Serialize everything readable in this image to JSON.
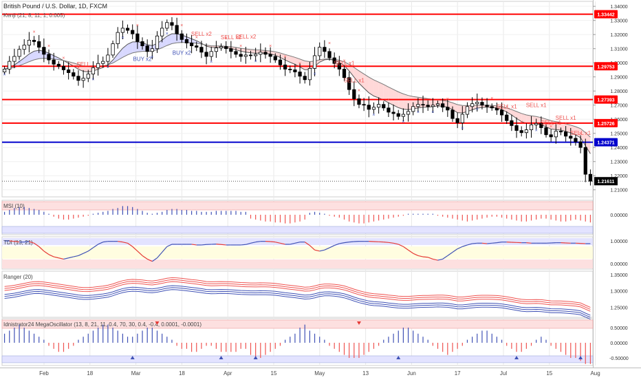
{
  "header": {
    "symbol_title": "British Pound / U.S. Dollar, 1D, FXCM",
    "kenji_label": "Kenji (21, 8, 11, 1, 0.005)"
  },
  "colors": {
    "up": "#ffffff",
    "down": "#000000",
    "resistance": "#ff0000",
    "support": "#0000cc",
    "sell_text": "#ef5350",
    "buy_text": "#3f51b5",
    "cloud_bull": "#d8d8ff",
    "cloud_bear": "#ffd8d8",
    "cloud_neutral": "#dfeadf",
    "grid": "#e8e8e8"
  },
  "chart_data": [
    {
      "type": "candlestick",
      "title": "British Pound / U.S. Dollar, 1D, FXCM",
      "indicator_label": "Kenji (21, 8, 11, 1, 0.005)",
      "ylim": [
        1.205,
        1.3435
      ],
      "y_ticks": [
        "1.34000",
        "1.33000",
        "1.32000",
        "1.31000",
        "1.30000",
        "1.29000",
        "1.28000",
        "1.27000",
        "1.26000",
        "1.25000",
        "1.24000",
        "1.23000",
        "1.22000",
        "1.21000"
      ],
      "x_ticks": [
        "Feb",
        "18",
        "Mar",
        "18",
        "Apr",
        "15",
        "May",
        "13",
        "Jun",
        "17",
        "Jul",
        "15",
        "Aug"
      ],
      "horizontal_levels": [
        {
          "value": 1.33442,
          "label": "1.33442",
          "color": "red"
        },
        {
          "value": 1.29753,
          "label": "1.29753",
          "color": "red"
        },
        {
          "value": 1.27393,
          "label": "1.27393",
          "color": "red"
        },
        {
          "value": 1.25726,
          "label": "1.25726",
          "color": "red"
        },
        {
          "value": 1.24371,
          "label": "1.24371",
          "color": "blue"
        }
      ],
      "last_price": {
        "value": 1.21611,
        "label": "1.21611"
      },
      "close_series_approx": [
        1.2955,
        1.301,
        1.3045,
        1.3095,
        1.3125,
        1.316,
        1.315,
        1.311,
        1.306,
        1.302,
        1.299,
        1.2975,
        1.295,
        1.293,
        1.2905,
        1.2875,
        1.289,
        1.292,
        1.2965,
        1.2995,
        1.301,
        1.3055,
        1.3135,
        1.3215,
        1.3245,
        1.323,
        1.3205,
        1.315,
        1.312,
        1.308,
        1.31,
        1.319,
        1.3245,
        1.3285,
        1.3265,
        1.3205,
        1.3165,
        1.314,
        1.312,
        1.311,
        1.3075,
        1.3045,
        1.308,
        1.3105,
        1.3115,
        1.31,
        1.308,
        1.306,
        1.3045,
        1.3055,
        1.305,
        1.306,
        1.3075,
        1.306,
        1.3045,
        1.302,
        1.2985,
        1.2955,
        1.295,
        1.2935,
        1.2905,
        1.288,
        1.296,
        1.305,
        1.311,
        1.308,
        1.3035,
        1.2995,
        1.2955,
        1.2895,
        1.281,
        1.2745,
        1.2705,
        1.27,
        1.267,
        1.2685,
        1.2705,
        1.268,
        1.265,
        1.264,
        1.262,
        1.2635,
        1.2655,
        1.269,
        1.2705,
        1.27,
        1.269,
        1.27,
        1.271,
        1.2685,
        1.2665,
        1.2605,
        1.2575,
        1.2635,
        1.269,
        1.271,
        1.272,
        1.27,
        1.269,
        1.268,
        1.2665,
        1.263,
        1.259,
        1.2555,
        1.252,
        1.2505,
        1.2525,
        1.256,
        1.257,
        1.254,
        1.249,
        1.2475,
        1.2515,
        1.251,
        1.248,
        1.2465,
        1.244,
        1.24,
        1.221,
        1.2161
      ],
      "signal_labels": [
        {
          "text": "SELL",
          "kind": "sell"
        },
        {
          "text": "BUY x2",
          "kind": "buy"
        },
        {
          "text": "BUY x2",
          "kind": "buy"
        },
        {
          "text": "SELL x2",
          "kind": "sell"
        },
        {
          "text": "SELL x2",
          "kind": "sell"
        },
        {
          "text": "SELL x2",
          "kind": "sell"
        },
        {
          "text": "SELL x1",
          "kind": "sell"
        },
        {
          "text": "SELL x1",
          "kind": "sell"
        },
        {
          "text": "SELL x1",
          "kind": "sell"
        },
        {
          "text": "SELL x1",
          "kind": "sell"
        },
        {
          "text": "SELL x1",
          "kind": "sell"
        },
        {
          "text": "SELL x1",
          "kind": "sell"
        },
        {
          "text": "SELL x1",
          "kind": "sell"
        }
      ]
    },
    {
      "type": "bar",
      "title": "MSI (10)",
      "y_ticks": [
        "0.00000"
      ],
      "values_approx": [
        0.3,
        0.5,
        0.7,
        0.8,
        0.8,
        0.7,
        0.6,
        0.5,
        0.3,
        0.1,
        -0.2,
        -0.4,
        -0.5,
        -0.5,
        -0.4,
        -0.3,
        -0.2,
        -0.1,
        0.1,
        0.2,
        0.3,
        0.4,
        0.6,
        0.7,
        0.9,
        0.9,
        0.8,
        0.6,
        0.4,
        0.2,
        0.1,
        0.2,
        0.3,
        0.5,
        0.6,
        0.6,
        0.5,
        0.5,
        0.4,
        0.4,
        0.3,
        0.3,
        0.3,
        0.4,
        0.4,
        0.4,
        0.4,
        0.4,
        0.3,
        0.3,
        -0.4,
        -0.5,
        -0.6,
        -0.7,
        -0.7,
        -0.8,
        -0.8,
        -0.9,
        -0.9,
        -0.8,
        -0.7,
        -0.5,
        0.2,
        0.3,
        0.2,
        0.1,
        -0.1,
        -0.2,
        -0.3,
        -0.5,
        -0.7,
        -0.8,
        -0.9,
        -0.9,
        -0.8,
        -0.7,
        -0.6,
        -0.5,
        -0.4,
        -0.3,
        -0.2,
        -0.1,
        0.1,
        0.1,
        0.1,
        0.1,
        0.1,
        0.1,
        -0.1,
        -0.2,
        -0.3,
        -0.4,
        -0.5,
        -0.6,
        -0.7,
        -0.6,
        -0.5,
        -0.4,
        -0.3,
        -0.2,
        -0.2,
        -0.3,
        -0.4,
        -0.5,
        -0.6,
        -0.7,
        -0.7,
        -0.6,
        -0.5,
        -0.4,
        -0.4,
        -0.5,
        -0.6,
        -0.7,
        -0.7,
        -0.6,
        -0.5,
        -0.6,
        -0.7,
        -0.8
      ]
    },
    {
      "type": "line",
      "title": "TDI (13, 21)",
      "y_ticks": [
        "1.00000",
        "0.00000"
      ],
      "values_approx": [
        1.0,
        1.0,
        0.98,
        0.95,
        0.95,
        0.97,
        0.9,
        0.75,
        0.55,
        0.4,
        0.3,
        0.25,
        0.2,
        0.25,
        0.3,
        0.35,
        0.45,
        0.55,
        0.7,
        0.85,
        0.95,
        0.98,
        0.98,
        0.98,
        0.95,
        0.9,
        0.75,
        0.55,
        0.35,
        0.2,
        0.1,
        0.25,
        0.5,
        0.75,
        0.85,
        0.85,
        0.85,
        0.85,
        0.85,
        0.82,
        0.82,
        0.84,
        0.85,
        0.86,
        0.84,
        0.82,
        0.82,
        0.82,
        0.82,
        0.84,
        0.9,
        0.95,
        0.98,
        0.98,
        0.97,
        0.95,
        0.9,
        0.85,
        0.85,
        0.9,
        0.95,
        0.95,
        0.8,
        0.6,
        0.55,
        0.6,
        0.7,
        0.8,
        0.88,
        0.92,
        0.95,
        0.97,
        0.98,
        0.98,
        0.98,
        0.97,
        0.96,
        0.95,
        0.93,
        0.9,
        0.85,
        0.75,
        0.6,
        0.45,
        0.35,
        0.3,
        0.28,
        0.2,
        0.15,
        0.2,
        0.35,
        0.5,
        0.65,
        0.75,
        0.82,
        0.88,
        0.9,
        0.9,
        0.88,
        0.9,
        0.92,
        0.95,
        0.95,
        0.94,
        0.93,
        0.92,
        0.92,
        0.9,
        0.9,
        0.9,
        0.9,
        0.91,
        0.92,
        0.92,
        0.91,
        0.9,
        0.9,
        0.89,
        0.88,
        0.88
      ]
    },
    {
      "type": "line",
      "title": "Ranger (20)",
      "y_ticks": [
        "1.35000",
        "1.30000",
        "1.25000"
      ]
    },
    {
      "type": "bar",
      "title": "Idnistrator24 MegaOscillator (13, 8, 21, 11, 0.4, 70, 30, 0.4, -0.4, 0.0001, -0.0001)",
      "y_ticks": [
        "0.50000",
        "0.00000",
        "-0.50000"
      ],
      "values_approx": [
        0.3,
        0.4,
        0.5,
        0.6,
        0.5,
        0.4,
        0.3,
        0.2,
        0.1,
        -0.1,
        -0.2,
        -0.3,
        -0.3,
        -0.2,
        -0.1,
        0.1,
        0.2,
        0.3,
        0.4,
        0.5,
        0.6,
        0.6,
        0.5,
        0.4,
        0.3,
        0.2,
        0.2,
        0.3,
        0.4,
        0.5,
        0.5,
        0.4,
        0.3,
        0.2,
        0.1,
        -0.1,
        -0.2,
        -0.2,
        -0.3,
        -0.3,
        -0.2,
        -0.1,
        -0.1,
        -0.2,
        -0.3,
        -0.3,
        -0.3,
        -0.3,
        -0.2,
        -0.2,
        -0.4,
        -0.5,
        -0.5,
        -0.4,
        -0.3,
        -0.2,
        -0.1,
        0.1,
        0.2,
        0.3,
        0.5,
        0.6,
        0.4,
        0.3,
        0.2,
        0.1,
        -0.1,
        -0.2,
        -0.3,
        -0.4,
        -0.5,
        -0.5,
        -0.5,
        -0.4,
        -0.3,
        -0.2,
        -0.1,
        0.1,
        0.2,
        0.3,
        0.4,
        0.5,
        0.5,
        0.4,
        0.3,
        0.2,
        0.1,
        -0.1,
        -0.2,
        -0.3,
        -0.4,
        -0.3,
        -0.2,
        -0.1,
        0.1,
        0.2,
        0.3,
        0.4,
        0.4,
        0.3,
        0.2,
        0.1,
        -0.1,
        -0.2,
        -0.3,
        -0.3,
        -0.2,
        -0.1,
        0.1,
        0.2,
        0.1,
        -0.1,
        -0.2,
        -0.3,
        -0.4,
        -0.5,
        -0.5,
        -0.6,
        -0.7,
        -0.7
      ]
    }
  ]
}
